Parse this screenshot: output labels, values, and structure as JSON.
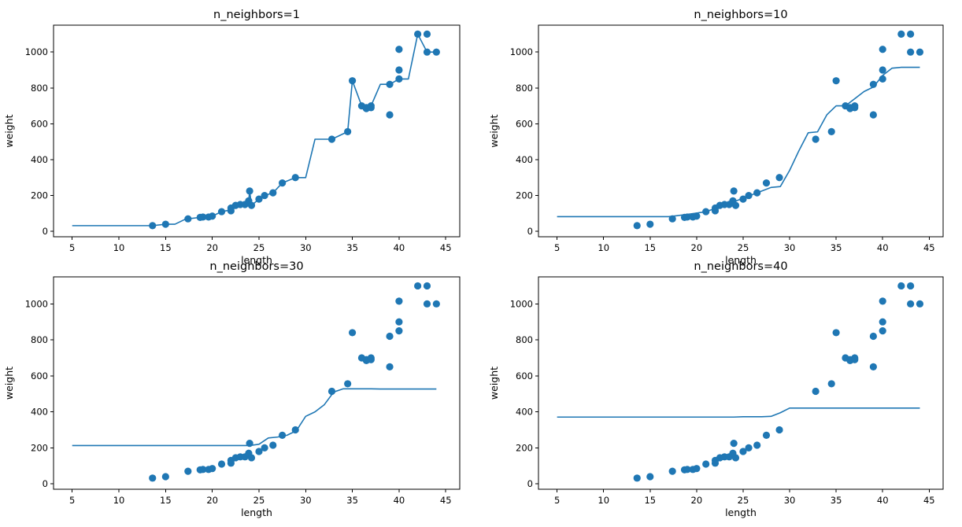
{
  "chart_data": [
    {
      "type": "scatter+line",
      "title": "n_neighbors=1",
      "xlabel": "length",
      "ylabel": "weight",
      "xlim": [
        3,
        46.5
      ],
      "ylim": [
        -30,
        1150
      ],
      "xticks": [
        5,
        10,
        15,
        20,
        25,
        30,
        35,
        40,
        45
      ],
      "yticks": [
        0,
        200,
        400,
        600,
        800,
        1000
      ],
      "points": [
        [
          13.6,
          32
        ],
        [
          15,
          40
        ],
        [
          17.4,
          70
        ],
        [
          18.7,
          78
        ],
        [
          19,
          80
        ],
        [
          19.6,
          80
        ],
        [
          20,
          85
        ],
        [
          21,
          110
        ],
        [
          22,
          115
        ],
        [
          22,
          130
        ],
        [
          22.5,
          145
        ],
        [
          23,
          150
        ],
        [
          23.5,
          150
        ],
        [
          23.9,
          170
        ],
        [
          24,
          225
        ],
        [
          24.2,
          145
        ],
        [
          25,
          180
        ],
        [
          25.6,
          200
        ],
        [
          26.5,
          215
        ],
        [
          27.5,
          270
        ],
        [
          28.9,
          300
        ],
        [
          32.8,
          514
        ],
        [
          34.5,
          556
        ],
        [
          35,
          840
        ],
        [
          36,
          700
        ],
        [
          36.5,
          690
        ],
        [
          36.5,
          685
        ],
        [
          37,
          700
        ],
        [
          37,
          690
        ],
        [
          39,
          650
        ],
        [
          39,
          820
        ],
        [
          40,
          850
        ],
        [
          40,
          900
        ],
        [
          40,
          1015
        ],
        [
          42,
          1100
        ],
        [
          43,
          1100
        ],
        [
          43,
          1000
        ],
        [
          44,
          1000
        ]
      ],
      "line": [
        [
          5,
          32
        ],
        [
          13.6,
          32
        ],
        [
          15,
          40
        ],
        [
          16,
          40
        ],
        [
          17,
          65
        ],
        [
          17.4,
          70
        ],
        [
          18.7,
          78
        ],
        [
          19,
          80
        ],
        [
          20,
          85
        ],
        [
          21,
          110
        ],
        [
          22,
          120
        ],
        [
          22.5,
          140
        ],
        [
          23,
          150
        ],
        [
          23.5,
          150
        ],
        [
          23.9,
          170
        ],
        [
          24,
          225
        ],
        [
          24.2,
          145
        ],
        [
          25,
          180
        ],
        [
          25.6,
          200
        ],
        [
          26.5,
          215
        ],
        [
          27.5,
          270
        ],
        [
          28.9,
          300
        ],
        [
          30,
          300
        ],
        [
          31,
          514
        ],
        [
          32.8,
          514
        ],
        [
          34.5,
          556
        ],
        [
          35,
          840
        ],
        [
          36,
          700
        ],
        [
          36.5,
          690
        ],
        [
          37,
          700
        ],
        [
          38,
          820
        ],
        [
          39,
          820
        ],
        [
          40,
          850
        ],
        [
          41,
          850
        ],
        [
          42,
          1100
        ],
        [
          43,
          1000
        ],
        [
          44,
          1000
        ]
      ]
    },
    {
      "type": "scatter+line",
      "title": "n_neighbors=10",
      "xlabel": "length",
      "ylabel": "weight",
      "xlim": [
        3,
        46.5
      ],
      "ylim": [
        -30,
        1150
      ],
      "xticks": [
        5,
        10,
        15,
        20,
        25,
        30,
        35,
        40,
        45
      ],
      "yticks": [
        0,
        200,
        400,
        600,
        800,
        1000
      ],
      "points": [
        [
          13.6,
          32
        ],
        [
          15,
          40
        ],
        [
          17.4,
          70
        ],
        [
          18.7,
          78
        ],
        [
          19,
          80
        ],
        [
          19.6,
          80
        ],
        [
          20,
          85
        ],
        [
          21,
          110
        ],
        [
          22,
          115
        ],
        [
          22,
          130
        ],
        [
          22.5,
          145
        ],
        [
          23,
          150
        ],
        [
          23.5,
          150
        ],
        [
          23.9,
          170
        ],
        [
          24,
          225
        ],
        [
          24.2,
          145
        ],
        [
          25,
          180
        ],
        [
          25.6,
          200
        ],
        [
          26.5,
          215
        ],
        [
          27.5,
          270
        ],
        [
          28.9,
          300
        ],
        [
          32.8,
          514
        ],
        [
          34.5,
          556
        ],
        [
          35,
          840
        ],
        [
          36,
          700
        ],
        [
          36.5,
          690
        ],
        [
          36.5,
          685
        ],
        [
          37,
          700
        ],
        [
          37,
          690
        ],
        [
          39,
          650
        ],
        [
          39,
          820
        ],
        [
          40,
          850
        ],
        [
          40,
          900
        ],
        [
          40,
          1015
        ],
        [
          42,
          1100
        ],
        [
          43,
          1100
        ],
        [
          43,
          1000
        ],
        [
          44,
          1000
        ]
      ],
      "line": [
        [
          5,
          82
        ],
        [
          17,
          82
        ],
        [
          18,
          88
        ],
        [
          19,
          95
        ],
        [
          20,
          102
        ],
        [
          21,
          110
        ],
        [
          22,
          128
        ],
        [
          23,
          145
        ],
        [
          24,
          165
        ],
        [
          25,
          185
        ],
        [
          26,
          205
        ],
        [
          27,
          225
        ],
        [
          28,
          245
        ],
        [
          29,
          250
        ],
        [
          30,
          340
        ],
        [
          31,
          450
        ],
        [
          32,
          550
        ],
        [
          33,
          555
        ],
        [
          34,
          650
        ],
        [
          35,
          700
        ],
        [
          36,
          700
        ],
        [
          37,
          740
        ],
        [
          38,
          780
        ],
        [
          39,
          805
        ],
        [
          40,
          870
        ],
        [
          41,
          910
        ],
        [
          42,
          915
        ],
        [
          44,
          915
        ]
      ]
    },
    {
      "type": "scatter+line",
      "title": "n_neighbors=30",
      "xlabel": "length",
      "ylabel": "weight",
      "xlim": [
        3,
        46.5
      ],
      "ylim": [
        -30,
        1150
      ],
      "xticks": [
        5,
        10,
        15,
        20,
        25,
        30,
        35,
        40,
        45
      ],
      "yticks": [
        0,
        200,
        400,
        600,
        800,
        1000
      ],
      "points": [
        [
          13.6,
          32
        ],
        [
          15,
          40
        ],
        [
          17.4,
          70
        ],
        [
          18.7,
          78
        ],
        [
          19,
          80
        ],
        [
          19.6,
          80
        ],
        [
          20,
          85
        ],
        [
          21,
          110
        ],
        [
          22,
          115
        ],
        [
          22,
          130
        ],
        [
          22.5,
          145
        ],
        [
          23,
          150
        ],
        [
          23.5,
          150
        ],
        [
          23.9,
          170
        ],
        [
          24,
          225
        ],
        [
          24.2,
          145
        ],
        [
          25,
          180
        ],
        [
          25.6,
          200
        ],
        [
          26.5,
          215
        ],
        [
          27.5,
          270
        ],
        [
          28.9,
          300
        ],
        [
          32.8,
          514
        ],
        [
          34.5,
          556
        ],
        [
          35,
          840
        ],
        [
          36,
          700
        ],
        [
          36.5,
          690
        ],
        [
          36.5,
          685
        ],
        [
          37,
          700
        ],
        [
          37,
          690
        ],
        [
          39,
          650
        ],
        [
          39,
          820
        ],
        [
          40,
          850
        ],
        [
          40,
          900
        ],
        [
          40,
          1015
        ],
        [
          42,
          1100
        ],
        [
          43,
          1100
        ],
        [
          43,
          1000
        ],
        [
          44,
          1000
        ]
      ],
      "line": [
        [
          5,
          213
        ],
        [
          24,
          213
        ],
        [
          25,
          220
        ],
        [
          26,
          255
        ],
        [
          27,
          260
        ],
        [
          28,
          270
        ],
        [
          29,
          295
        ],
        [
          30,
          375
        ],
        [
          31,
          400
        ],
        [
          32,
          440
        ],
        [
          33,
          510
        ],
        [
          34,
          528
        ],
        [
          37,
          528
        ],
        [
          38,
          527
        ],
        [
          44,
          527
        ]
      ]
    },
    {
      "type": "scatter+line",
      "title": "n_neighbors=40",
      "xlabel": "length",
      "ylabel": "weight",
      "xlim": [
        3,
        46.5
      ],
      "ylim": [
        -30,
        1150
      ],
      "xticks": [
        5,
        10,
        15,
        20,
        25,
        30,
        35,
        40,
        45
      ],
      "yticks": [
        0,
        200,
        400,
        600,
        800,
        1000
      ],
      "points": [
        [
          13.6,
          32
        ],
        [
          15,
          40
        ],
        [
          17.4,
          70
        ],
        [
          18.7,
          78
        ],
        [
          19,
          80
        ],
        [
          19.6,
          80
        ],
        [
          20,
          85
        ],
        [
          21,
          110
        ],
        [
          22,
          115
        ],
        [
          22,
          130
        ],
        [
          22.5,
          145
        ],
        [
          23,
          150
        ],
        [
          23.5,
          150
        ],
        [
          23.9,
          170
        ],
        [
          24,
          225
        ],
        [
          24.2,
          145
        ],
        [
          25,
          180
        ],
        [
          25.6,
          200
        ],
        [
          26.5,
          215
        ],
        [
          27.5,
          270
        ],
        [
          28.9,
          300
        ],
        [
          32.8,
          514
        ],
        [
          34.5,
          556
        ],
        [
          35,
          840
        ],
        [
          36,
          700
        ],
        [
          36.5,
          690
        ],
        [
          36.5,
          685
        ],
        [
          37,
          700
        ],
        [
          37,
          690
        ],
        [
          39,
          650
        ],
        [
          39,
          820
        ],
        [
          40,
          850
        ],
        [
          40,
          900
        ],
        [
          40,
          1015
        ],
        [
          42,
          1100
        ],
        [
          43,
          1100
        ],
        [
          43,
          1000
        ],
        [
          44,
          1000
        ]
      ],
      "line": [
        [
          5,
          371
        ],
        [
          24,
          371
        ],
        [
          25,
          373
        ],
        [
          27,
          373
        ],
        [
          28,
          375
        ],
        [
          29,
          395
        ],
        [
          30,
          421
        ],
        [
          44,
          421
        ]
      ]
    }
  ],
  "colors": {
    "series": "#1f77b4"
  }
}
